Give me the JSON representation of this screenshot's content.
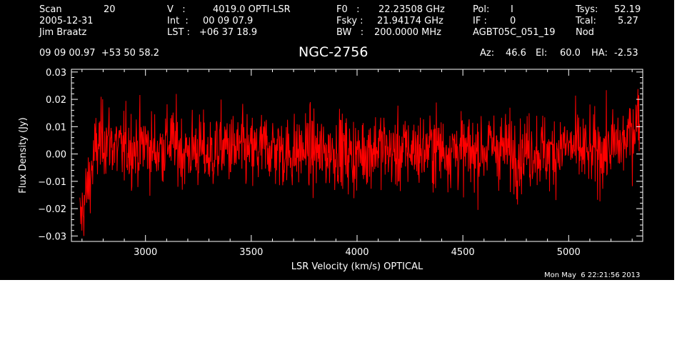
{
  "header": {
    "scan_label": "Scan",
    "scan_value": "20",
    "date": "2005-12-31",
    "observer": "Jim Braatz",
    "v_label": "V   :",
    "v_value": "4019.0 OPTI-LSR",
    "int_label": "Int  :",
    "int_value": "00 09 07.9",
    "lst_label": "LST :",
    "lst_value": "+06 37 18.9",
    "f0_label": "F0   :",
    "f0_value": "22.23508 GHz",
    "fsky_label": "Fsky :",
    "fsky_value": "21.94174 GHz",
    "bw_label": "BW   :",
    "bw_value": "200.0000 MHz",
    "pol_label": "Pol:",
    "pol_value": "I",
    "if_label": "IF :",
    "if_value": "0",
    "project": "AGBT05C_051_19",
    "tsys_label": "Tsys:",
    "tsys_value": "52.19",
    "tcal_label": "Tcal:",
    "tcal_value": "5.27",
    "proc": "Nod",
    "coords": "09 09 00.97  +53 50 58.2",
    "source": "NGC-2756",
    "az_label": "Az:",
    "az_value": "46.6",
    "el_label": "El:",
    "el_value": "60.0",
    "ha_label": "HA:",
    "ha_value": "-2.53"
  },
  "timestamp": "Mon May  6 22:21:56 2013",
  "colors": {
    "background": "#000000",
    "axes": "#ffffff",
    "trace": "#ff0000"
  },
  "chart_data": {
    "type": "line",
    "xlabel": "LSR Velocity (km/s) OPTICAL",
    "ylabel": "Flux Density (Jy)",
    "xlim": [
      2650,
      5350
    ],
    "ylim": [
      -0.032,
      0.031
    ],
    "x_ticks": [
      3000,
      3500,
      4000,
      4500,
      5000
    ],
    "x_tick_labels": [
      "3000",
      "3500",
      "4000",
      "4500",
      "5000"
    ],
    "y_ticks": [
      -0.03,
      -0.02,
      -0.01,
      0.0,
      0.01,
      0.02,
      0.03
    ],
    "y_tick_labels": [
      "−0.03",
      "−0.02",
      "−0.01",
      "0.00",
      "0.01",
      "0.02",
      "0.03"
    ],
    "series": [
      {
        "color": "#ff0000",
        "x_start": 2690,
        "x_end": 5335,
        "values": [
          -0.025,
          -0.012,
          0.002,
          0.006,
          0.004,
          0.001,
          0.003,
          0.002,
          0.004,
          0.001,
          0.002,
          0.005,
          0.003,
          0.0,
          0.002,
          0.001,
          -0.001,
          0.002,
          0.003,
          0.001,
          0.002,
          0.0,
          0.001,
          0.003,
          0.002,
          0.001,
          0.0,
          0.001,
          0.002,
          0.001,
          0.0,
          0.001,
          0.002,
          0.0,
          -0.001,
          0.001,
          0.002,
          0.003,
          0.001,
          0.0,
          0.001,
          0.002,
          0.001,
          0.002,
          0.003,
          0.001,
          0.002,
          0.001,
          0.0,
          0.001,
          0.002,
          0.003,
          0.002,
          0.001,
          0.0,
          0.001,
          0.002,
          0.001,
          0.0,
          0.002,
          0.003,
          0.002,
          0.001,
          0.0,
          0.001,
          0.002,
          0.003,
          0.004,
          0.008,
          0.015
        ],
        "noise_rms": 0.0068
      }
    ]
  }
}
